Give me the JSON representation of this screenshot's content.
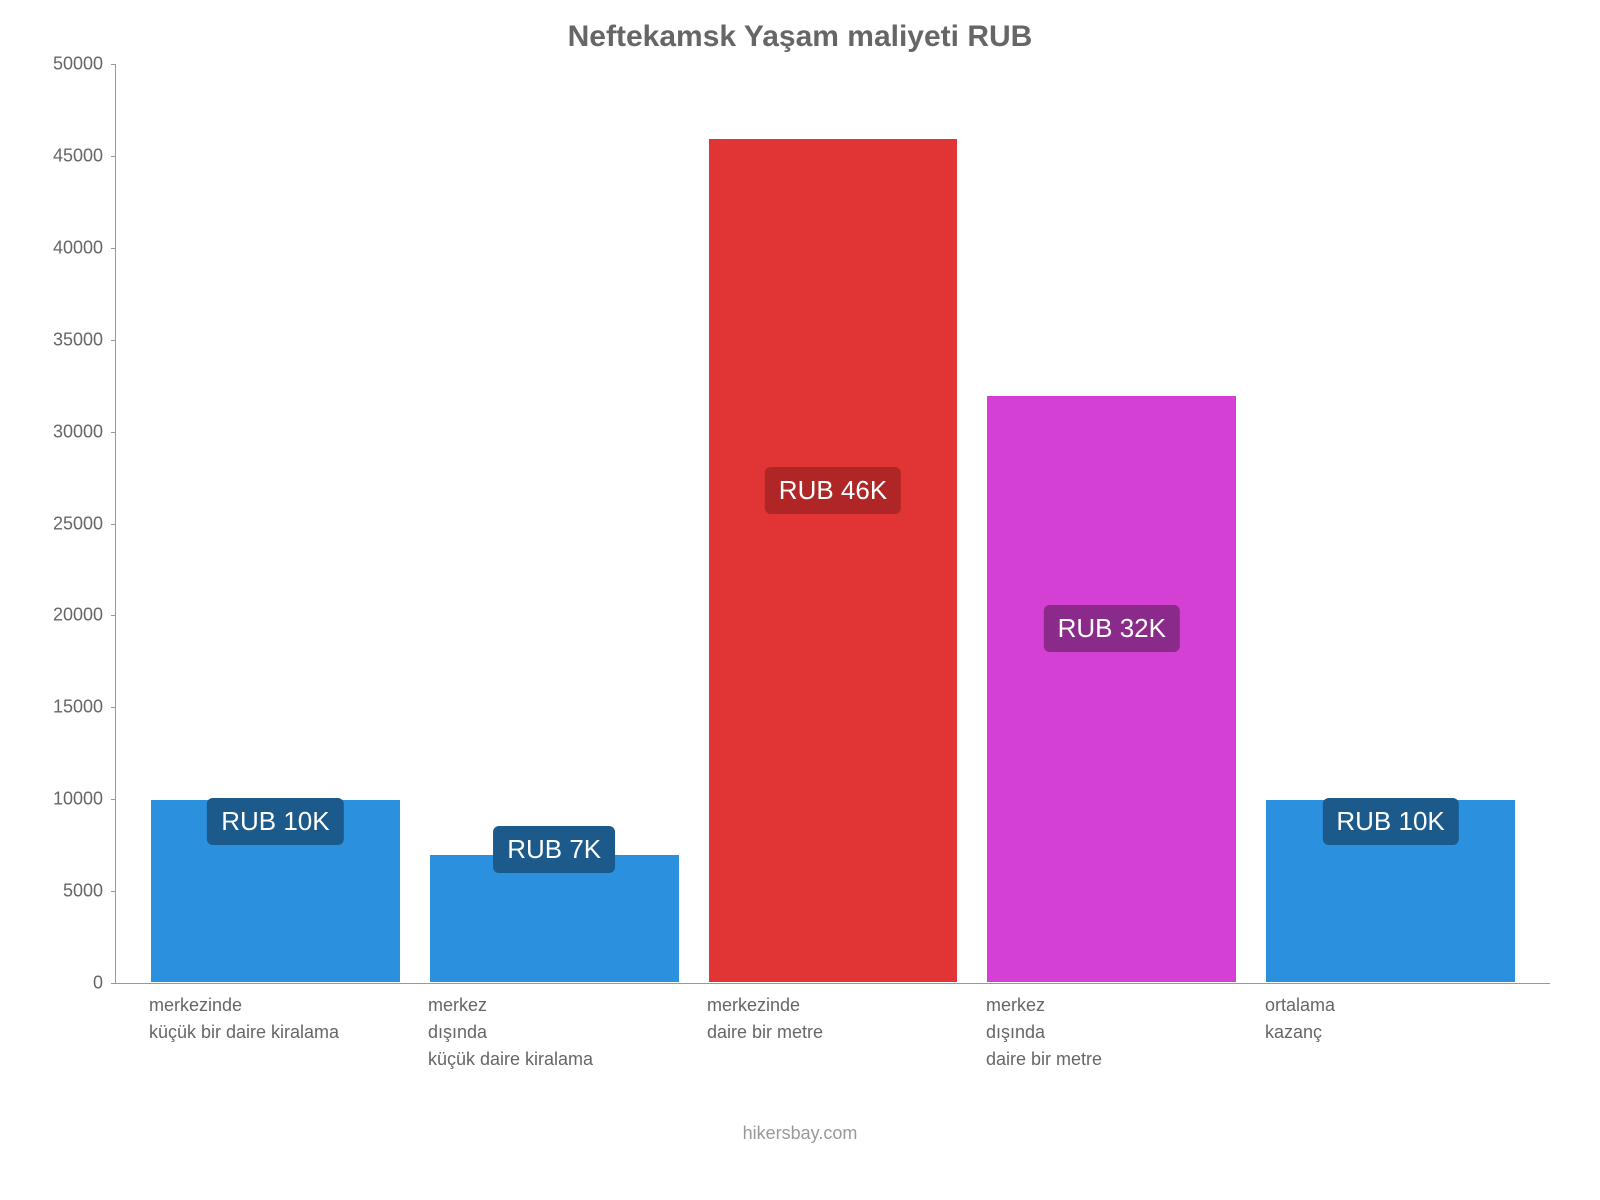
{
  "chart": {
    "type": "bar",
    "title": "Neftekamsk Yaşam maliyeti RUB",
    "title_color": "#666666",
    "title_fontsize": 30,
    "ylim": [
      0,
      50000
    ],
    "ytick_step": 5000,
    "yticks": [
      {
        "value": 0,
        "label": "0"
      },
      {
        "value": 5000,
        "label": "5000"
      },
      {
        "value": 10000,
        "label": "10000"
      },
      {
        "value": 15000,
        "label": "15000"
      },
      {
        "value": 20000,
        "label": "20000"
      },
      {
        "value": 25000,
        "label": "25000"
      },
      {
        "value": 30000,
        "label": "30000"
      },
      {
        "value": 35000,
        "label": "35000"
      },
      {
        "value": 40000,
        "label": "40000"
      },
      {
        "value": 45000,
        "label": "45000"
      },
      {
        "value": 50000,
        "label": "50000"
      }
    ],
    "bars": [
      {
        "category": "merkezinde\nküçük bir daire kiralama",
        "value": 10000,
        "bar_color": "#2b90de",
        "label_text": "RUB 10K",
        "label_bg": "#1b5a8a",
        "label_position": 7500
      },
      {
        "category": "merkez\ndışında\nküçük daire kiralama",
        "value": 7000,
        "bar_color": "#2b90de",
        "label_text": "RUB 7K",
        "label_bg": "#1b5a8a",
        "label_position": 6000
      },
      {
        "category": "merkezinde\ndaire bir metre",
        "value": 46000,
        "bar_color": "#e13434",
        "label_text": "RUB 46K",
        "label_bg": "#b02626",
        "label_position": 25500
      },
      {
        "category": "merkez\ndışında\ndaire bir metre",
        "value": 32000,
        "bar_color": "#d43fd4",
        "label_text": "RUB 32K",
        "label_bg": "#8a2a8a",
        "label_position": 18000
      },
      {
        "category": "ortalama\nkazanç",
        "value": 10000,
        "bar_color": "#2b90de",
        "label_text": "RUB 10K",
        "label_bg": "#1b5a8a",
        "label_position": 7500
      }
    ],
    "axis_color": "#999999",
    "tick_label_color": "#666666",
    "tick_fontsize": 18,
    "background_color": "#ffffff",
    "bar_border_color": "#ffffff",
    "attribution": "hikersbay.com",
    "attribution_color": "#999999"
  }
}
